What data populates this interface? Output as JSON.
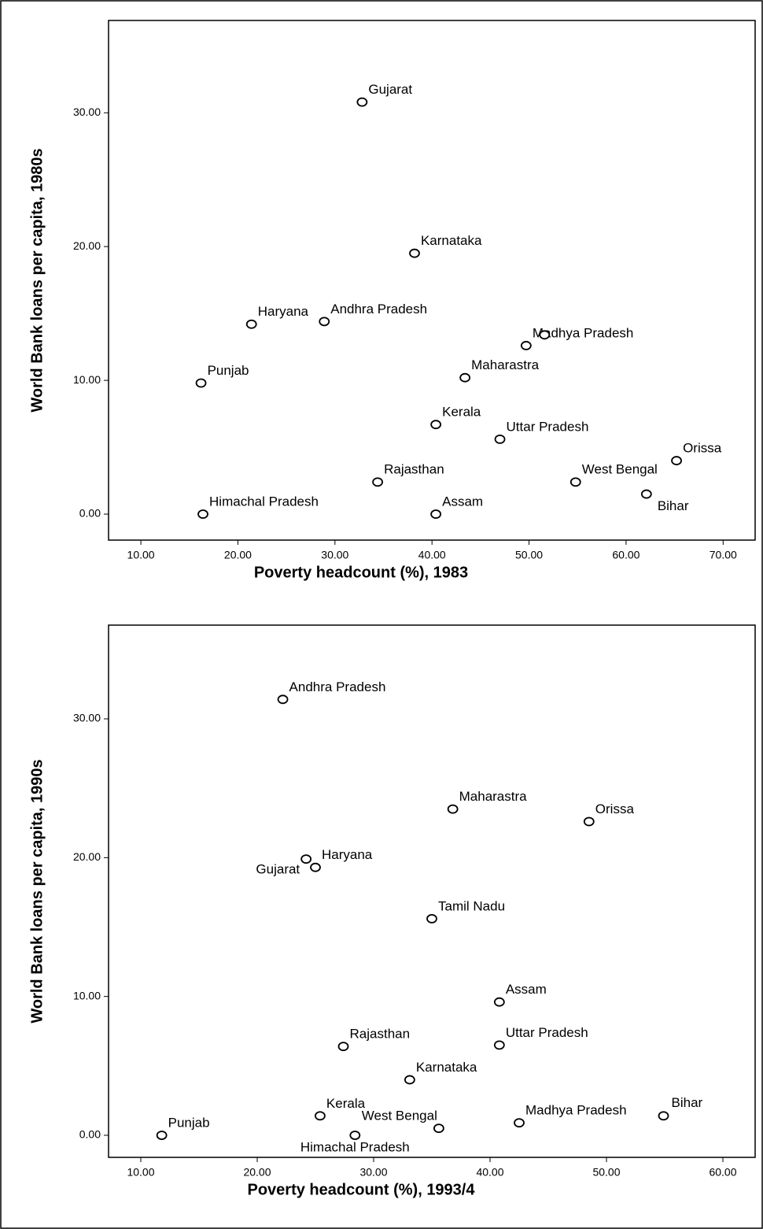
{
  "chart_data": [
    {
      "type": "scatter",
      "xlabel": "Poverty headcount (%), 1983",
      "ylabel": "World Bank loans per capita, 1980s",
      "labels": [
        "Gujarat",
        "Karnataka",
        "Haryana",
        "Andhra Pradesh",
        "Madhya Pradesh",
        null,
        "Punjab",
        "Maharastra",
        "Kerala",
        "Uttar Pradesh",
        "Orissa",
        "Rajasthan",
        "West Bengal",
        "Bihar",
        "Himachal Pradesh",
        "Assam"
      ],
      "x": [
        32.8,
        38.2,
        21.4,
        28.9,
        49.7,
        51.6,
        16.2,
        43.4,
        40.4,
        47.0,
        65.2,
        34.4,
        54.8,
        62.1,
        16.4,
        40.4
      ],
      "values": [
        30.8,
        19.5,
        14.2,
        14.4,
        12.6,
        13.4,
        9.8,
        10.2,
        6.7,
        5.6,
        4.0,
        2.4,
        2.4,
        1.5,
        0,
        0
      ],
      "color": "#000000",
      "xlim": [
        6.67,
        73.3
      ],
      "ylim": [
        -1.94,
        36.9
      ],
      "xticks": [
        {
          "value": 10,
          "label": "10.00"
        },
        {
          "value": 20,
          "label": "20.00"
        },
        {
          "value": 30,
          "label": "30.00"
        },
        {
          "value": 40,
          "label": "40.00"
        },
        {
          "value": 50,
          "label": "50.00"
        },
        {
          "value": 60,
          "label": "60.00"
        },
        {
          "value": 70,
          "label": "70.00"
        }
      ],
      "yticks": [
        {
          "value": 0,
          "label": "0.00"
        },
        {
          "value": 10,
          "label": "10.00"
        },
        {
          "value": 20,
          "label": "20.00"
        },
        {
          "value": 30,
          "label": "30.00"
        }
      ]
    },
    {
      "type": "scatter",
      "xlabel": "Poverty headcount (%), 1993/4",
      "ylabel": "World Bank loans per capita, 1990s",
      "labels": [
        "Andhra Pradesh",
        "Maharastra",
        "Orissa",
        "Gujarat",
        "Haryana",
        "Tamil Nadu",
        "Assam",
        "Rajasthan",
        "Uttar Pradesh",
        "Karnataka",
        "Kerala",
        "Madhya Pradesh",
        "Bihar",
        "West Bengal",
        "Punjab",
        "Himachal Pradesh"
      ],
      "x": [
        22.2,
        36.8,
        48.5,
        24.2,
        25.0,
        35.0,
        40.8,
        27.4,
        40.8,
        33.1,
        25.4,
        42.5,
        54.9,
        35.6,
        11.8,
        28.4
      ],
      "values": [
        31.4,
        23.5,
        22.6,
        19.9,
        19.3,
        15.6,
        9.6,
        6.4,
        6.5,
        4.0,
        1.4,
        0.9,
        1.4,
        0.5,
        0,
        0
      ],
      "color": "#000000",
      "xlim": [
        7.23,
        62.77
      ],
      "ylim": [
        -1.59,
        36.75
      ],
      "xticks": [
        {
          "value": 10,
          "label": "10.00"
        },
        {
          "value": 20,
          "label": "20.00"
        },
        {
          "value": 30,
          "label": "30.00"
        },
        {
          "value": 40,
          "label": "40.00"
        },
        {
          "value": 50,
          "label": "50.00"
        },
        {
          "value": 60,
          "label": "60.00"
        }
      ],
      "yticks": [
        {
          "value": 0,
          "label": "0.00"
        },
        {
          "value": 10,
          "label": "10.00"
        },
        {
          "value": 20,
          "label": "20.00"
        },
        {
          "value": 30,
          "label": "30.00"
        }
      ]
    }
  ]
}
